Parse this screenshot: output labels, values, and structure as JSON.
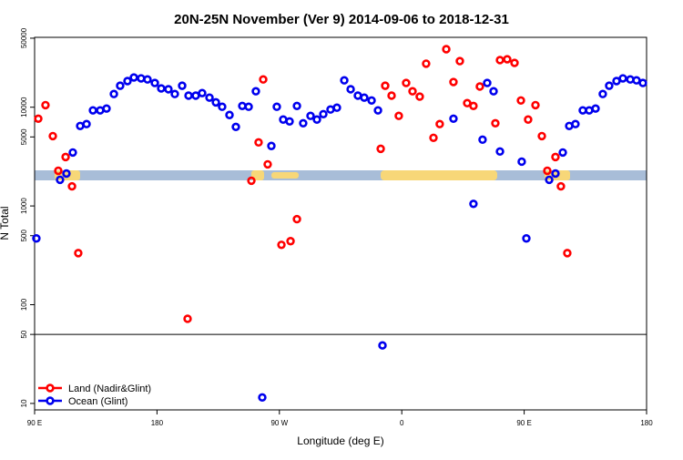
{
  "chart_data": {
    "type": "scatter",
    "title": "20N-25N November (Ver 9)   2014-09-06 to 2018-12-31",
    "x_label": "Longitude (deg E)",
    "y_label": "N Total",
    "xlim": [
      90,
      540
    ],
    "ylim": [
      8.6,
      51000
    ],
    "log_y": true,
    "xticks": [
      {
        "value": 90,
        "label": "90 E"
      },
      {
        "value": 180,
        "label": "180"
      },
      {
        "value": 270,
        "label": "90 W"
      },
      {
        "value": 360,
        "label": "0"
      },
      {
        "value": 450,
        "label": "90 E"
      },
      {
        "value": 540,
        "label": "180"
      }
    ],
    "yticks": [
      10,
      50,
      100,
      500,
      1000,
      5000,
      10000,
      50000
    ],
    "reference_line": 50,
    "legend": "bottom left",
    "series": [
      {
        "name": "Land (Nadir&Glint)",
        "color": "#ff0000",
        "x": [
          92.7,
          98.0,
          103.4,
          107.4,
          112.8,
          117.5,
          122.1,
          202.5,
          249.4,
          254.7,
          258.1,
          261.4,
          271.5,
          278.2,
          282.9,
          344.5,
          347.8,
          352.5,
          357.8,
          363.2,
          367.9,
          373.2,
          377.9,
          383.3,
          387.9,
          392.7,
          398.0,
          402.7,
          408.1,
          412.7,
          417.4,
          428.8,
          432.2,
          437.5,
          442.9,
          447.6,
          452.9,
          458.3,
          463.0,
          467.0,
          473.0,
          477.0,
          481.7
        ],
        "values": [
          7650,
          10500,
          5100,
          2270,
          3130,
          1580,
          333,
          72,
          1800,
          4400,
          19100,
          2640,
          404,
          440,
          735,
          3790,
          16500,
          13100,
          8170,
          17600,
          14500,
          12800,
          27600,
          4900,
          6750,
          38700,
          18000,
          29300,
          11000,
          10300,
          16200,
          6880,
          30000,
          30600,
          28100,
          11700,
          7500,
          10500,
          5100,
          2270,
          3130,
          1580,
          333
        ]
      },
      {
        "name": "Ocean (Glint)",
        "color": "#0000ee",
        "x": [
          91.3,
          108.7,
          113.4,
          118.1,
          123.5,
          128.2,
          132.9,
          138.2,
          142.9,
          148.3,
          152.9,
          158.3,
          163.0,
          168.3,
          173.0,
          178.4,
          183.1,
          188.4,
          193.1,
          198.5,
          203.2,
          208.5,
          213.2,
          218.6,
          223.3,
          227.9,
          233.3,
          238.0,
          242.7,
          247.4,
          252.7,
          257.4,
          264.1,
          268.1,
          272.8,
          277.5,
          282.9,
          287.5,
          292.9,
          297.6,
          302.3,
          307.6,
          312.3,
          317.7,
          322.4,
          327.7,
          332.4,
          337.8,
          342.5,
          345.8,
          398.0,
          412.7,
          419.4,
          422.8,
          427.5,
          432.2,
          448.2,
          451.6,
          468.4,
          473.0,
          478.4,
          483.1,
          487.7,
          493.1,
          497.8,
          502.5,
          507.8,
          512.5,
          517.9,
          522.6,
          528.0,
          532.6,
          537.3
        ],
        "values": [
          469,
          1840,
          2130,
          3480,
          6460,
          6750,
          9290,
          9290,
          9690,
          13600,
          16500,
          18400,
          20000,
          19600,
          19100,
          17600,
          15500,
          15200,
          13600,
          16500,
          13100,
          13100,
          13900,
          12500,
          11200,
          10100,
          8340,
          6320,
          10300,
          10100,
          14500,
          11.5,
          4050,
          10100,
          7500,
          7180,
          10300,
          6880,
          8170,
          7500,
          8510,
          9480,
          9890,
          18700,
          15200,
          13100,
          12500,
          11700,
          9290,
          38.7,
          7650,
          1050,
          4690,
          17600,
          14500,
          3560,
          2810,
          469,
          1840,
          2130,
          3480,
          6460,
          6750,
          9290,
          9290,
          9690,
          13600,
          16500,
          18400,
          19600,
          19100,
          18700,
          17600
        ]
      }
    ]
  }
}
